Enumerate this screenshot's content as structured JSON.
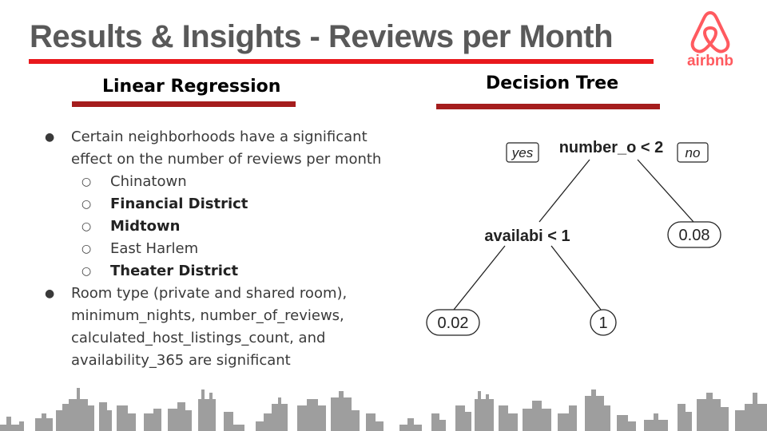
{
  "title": "Results & Insights - Reviews per Month",
  "logo_text": "airbnb",
  "colors": {
    "accent_red": "#e8181c",
    "dark_red": "#a51d1d",
    "logo": "#ff5a5f",
    "skyline": "#9e9e9e"
  },
  "linear_regression": {
    "heading": "Linear Regression",
    "bullets": [
      "Certain neighborhoods have a significant effect on the number of reviews per month",
      "Room type (private and shared room), minimum_nights, number_of_reviews, calculated_host_listings_count, and availability_365 are significant"
    ],
    "neighborhoods": [
      {
        "name": "Chinatown",
        "bold": false
      },
      {
        "name": "Financial District",
        "bold": true
      },
      {
        "name": "Midtown",
        "bold": true
      },
      {
        "name": "East Harlem",
        "bold": false
      },
      {
        "name": "Theater District",
        "bold": true
      }
    ]
  },
  "decision_tree": {
    "heading": "Decision Tree",
    "root_split": "number_o < 2",
    "yes_label": "yes",
    "no_label": "no",
    "second_split": "availabi < 1",
    "leaves": [
      "0.08",
      "0.02",
      "1"
    ]
  }
}
